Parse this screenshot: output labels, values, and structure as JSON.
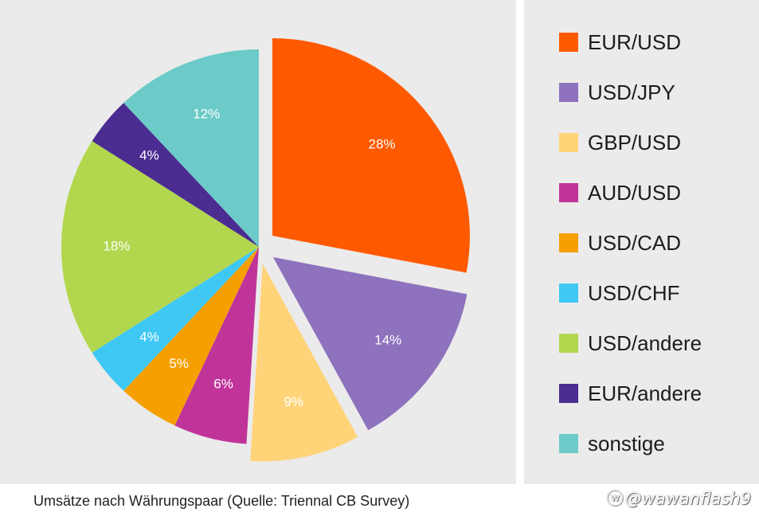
{
  "chart_data": {
    "type": "pie",
    "title": "",
    "categories": [
      "EUR/USD",
      "USD/JPY",
      "GBP/USD",
      "AUD/USD",
      "USD/CAD",
      "USD/CHF",
      "USD/andere",
      "EUR/andere",
      "sonstige"
    ],
    "values": [
      28,
      14,
      9,
      6,
      5,
      4,
      18,
      4,
      12
    ],
    "value_labels": [
      "28%",
      "14%",
      "9%",
      "6%",
      "5%",
      "4%",
      "18%",
      "4%",
      "12%"
    ],
    "colors": [
      "#ff5a00",
      "#8e72bd",
      "#ffd479",
      "#c0349a",
      "#f5a000",
      "#3fc8f4",
      "#b2d74e",
      "#4b2c91",
      "#6ccbc8"
    ],
    "exploded": [
      "EUR/USD",
      "USD/JPY",
      "GBP/USD"
    ],
    "legend_position": "right"
  },
  "legend": {
    "items": [
      "EUR/USD",
      "USD/JPY",
      "GBP/USD",
      "AUD/USD",
      "USD/CAD",
      "USD/CHF",
      "USD/andere",
      "EUR/andere",
      "sonstige"
    ]
  },
  "caption": "Umsätze nach Währungspaar (Quelle: Triennal CB Survey)",
  "watermark": {
    "glyph": "ⓦ",
    "text": "@wawanflash9"
  }
}
